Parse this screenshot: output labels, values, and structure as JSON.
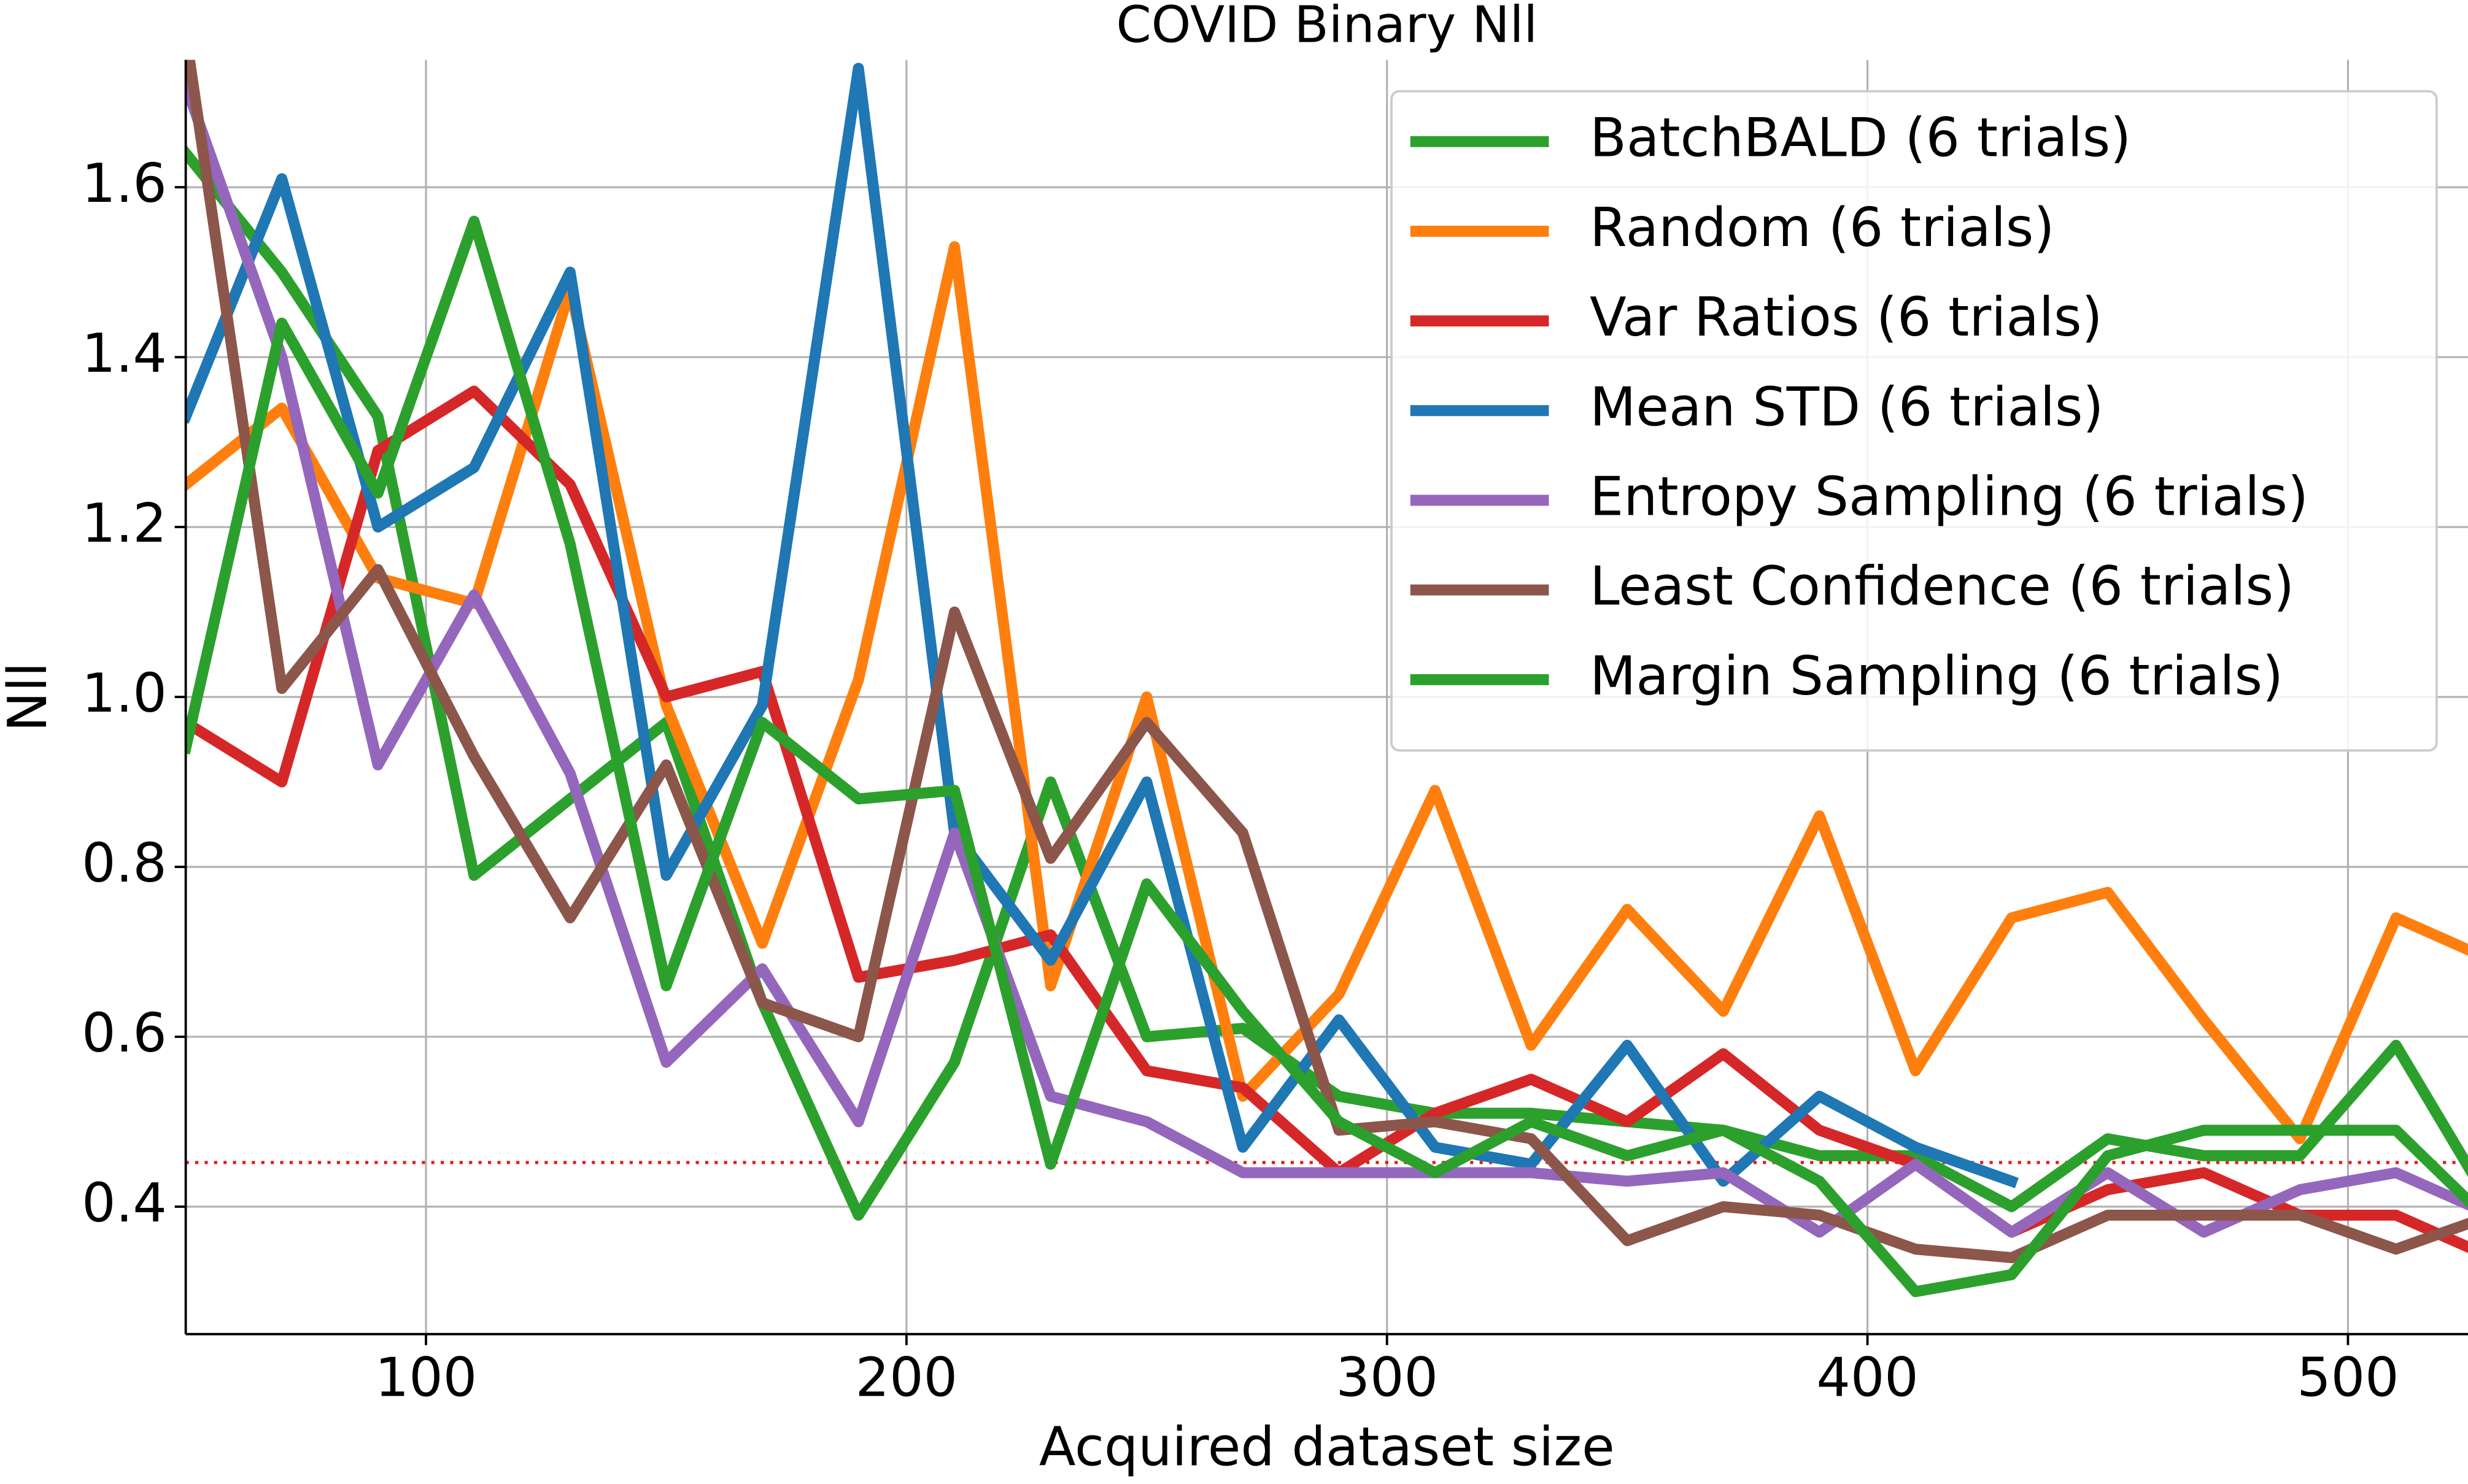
{
  "chart_data": {
    "type": "line",
    "title": "COVID Binary Nll",
    "xlabel": "Acquired dataset size",
    "ylabel": "Nll",
    "x": [
      50,
      70,
      90,
      110,
      130,
      150,
      170,
      190,
      210,
      230,
      250,
      270,
      290,
      310,
      330,
      350,
      370,
      390,
      410,
      430,
      450,
      470,
      490,
      510,
      530
    ],
    "xlim": [
      50,
      525
    ],
    "ylim": [
      0.25,
      1.75
    ],
    "xticks": [
      100,
      200,
      300,
      400,
      500
    ],
    "yticks": [
      0.4,
      0.6,
      0.8,
      {
        "value": 1.0,
        "label": "1.0"
      },
      1.2,
      1.4,
      1.6
    ],
    "grid": true,
    "legend": "upper right",
    "hline": {
      "value": 0.452,
      "color": "#e41a1c"
    },
    "series": [
      {
        "name": "BatchBALD (6 trials)",
        "color": "#2ca02c",
        "values": [
          1.64,
          1.5,
          1.33,
          0.79,
          0.88,
          0.97,
          0.64,
          0.39,
          0.57,
          0.9,
          0.6,
          0.61,
          0.53,
          0.51,
          0.51,
          0.5,
          0.49,
          0.46,
          0.46,
          0.4,
          0.48,
          0.46,
          0.46,
          0.59,
          0.4
        ]
      },
      {
        "name": "Random (6 trials)",
        "color": "#ff7f0e",
        "values": [
          1.25,
          1.34,
          1.14,
          1.11,
          1.48,
          0.99,
          0.71,
          1.02,
          1.53,
          0.66,
          1.0,
          0.53,
          0.65,
          0.89,
          0.59,
          0.75,
          0.63,
          0.86,
          0.56,
          0.74,
          0.77,
          0.62,
          0.48,
          0.74,
          0.69
        ]
      },
      {
        "name": "Var Ratios (6 trials)",
        "color": "#d62728",
        "values": [
          0.97,
          0.9,
          1.29,
          1.36,
          1.25,
          1.0,
          1.03,
          0.67,
          0.69,
          0.72,
          0.56,
          0.54,
          0.44,
          0.51,
          0.55,
          0.5,
          0.58,
          0.49,
          0.45,
          0.37,
          0.42,
          0.44,
          0.39,
          0.39,
          0.34
        ]
      },
      {
        "name": "Mean STD (6 trials)",
        "color": "#1f77b4",
        "values": [
          1.33,
          1.61,
          1.2,
          1.27,
          1.5,
          0.79,
          0.99,
          1.74,
          0.84,
          0.69,
          0.9,
          0.47,
          0.62,
          0.47,
          0.45,
          0.59,
          0.43,
          0.53,
          0.47,
          0.43,
          null,
          null,
          null,
          null,
          null
        ]
      },
      {
        "name": "Entropy Sampling (6 trials)",
        "color": "#9467bd",
        "values": [
          1.72,
          1.4,
          0.92,
          1.12,
          0.91,
          0.57,
          0.68,
          0.5,
          0.84,
          0.53,
          0.5,
          0.44,
          0.44,
          0.44,
          0.44,
          0.43,
          0.44,
          0.37,
          0.45,
          0.37,
          0.44,
          0.37,
          0.42,
          0.44,
          0.39
        ]
      },
      {
        "name": "Least Confidence (6 trials)",
        "color": "#8c564b",
        "values": [
          1.78,
          1.01,
          1.15,
          0.93,
          0.74,
          0.92,
          0.64,
          0.6,
          1.1,
          0.81,
          0.97,
          0.84,
          0.49,
          0.5,
          0.48,
          0.36,
          0.4,
          0.39,
          0.35,
          0.34,
          0.39,
          0.39,
          0.39,
          0.35,
          0.39
        ]
      },
      {
        "name": "Margin Sampling (6 trials)",
        "color": "#2ca02c",
        "values": [
          0.94,
          1.44,
          1.24,
          1.56,
          1.18,
          0.66,
          0.97,
          0.88,
          0.89,
          0.45,
          0.78,
          0.63,
          0.5,
          0.44,
          0.5,
          0.46,
          0.49,
          0.43,
          0.3,
          0.32,
          0.46,
          0.49,
          0.49,
          0.49,
          0.38
        ]
      }
    ]
  }
}
